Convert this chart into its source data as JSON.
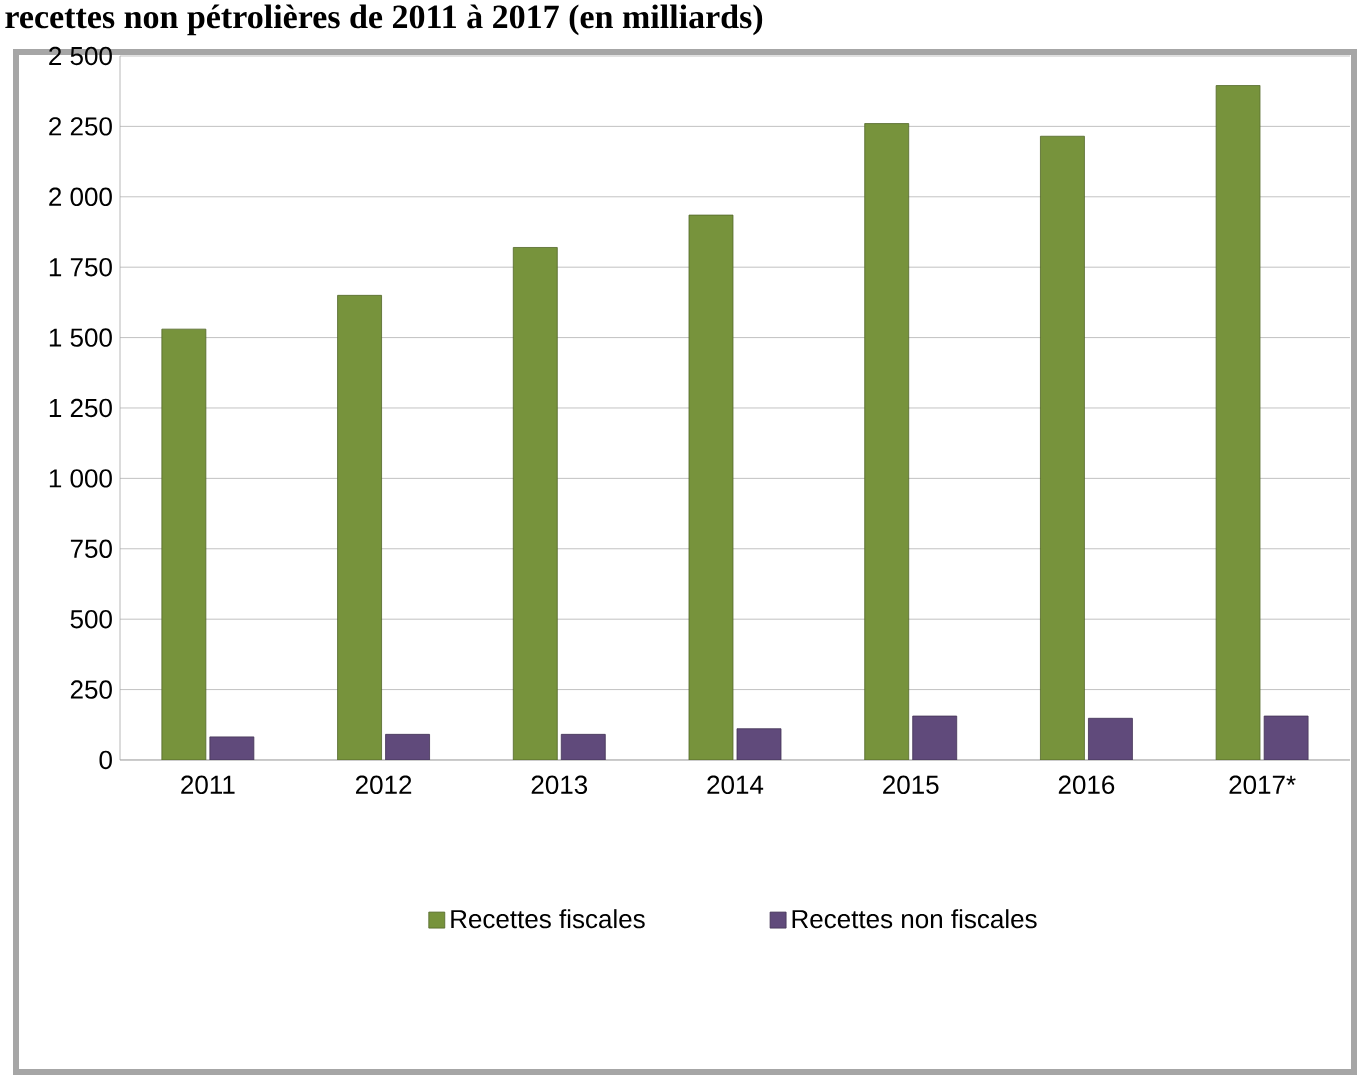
{
  "chart_data": {
    "type": "bar",
    "title": "recettes non pétrolières de 2011 à 2017 (en milliards)",
    "categories": [
      "2011",
      "2012",
      "2013",
      "2014",
      "2015",
      "2016",
      "2017*"
    ],
    "series": [
      {
        "name": "Recettes fiscales",
        "color": "#77933c",
        "values": [
          1530,
          1650,
          1820,
          1935,
          2260,
          2215,
          2395
        ]
      },
      {
        "name": "Recettes non fiscales",
        "color": "#604a7b",
        "values": [
          82,
          91,
          91,
          111,
          156,
          148,
          156
        ]
      }
    ],
    "ylim": [
      0,
      2500
    ],
    "yticks": [
      0,
      250,
      500,
      750,
      {
        "value": 1000,
        "label": "1 000"
      },
      {
        "value": 1250,
        "label": "1 250"
      },
      {
        "value": 1500,
        "label": "1 500"
      },
      {
        "value": 1750,
        "label": "1 750"
      },
      {
        "value": 2000,
        "label": "2 000"
      },
      {
        "value": 2250,
        "label": "2 250"
      },
      {
        "value": 2500,
        "label": "2 500"
      }
    ],
    "grid": "y",
    "legend": "bottom"
  }
}
